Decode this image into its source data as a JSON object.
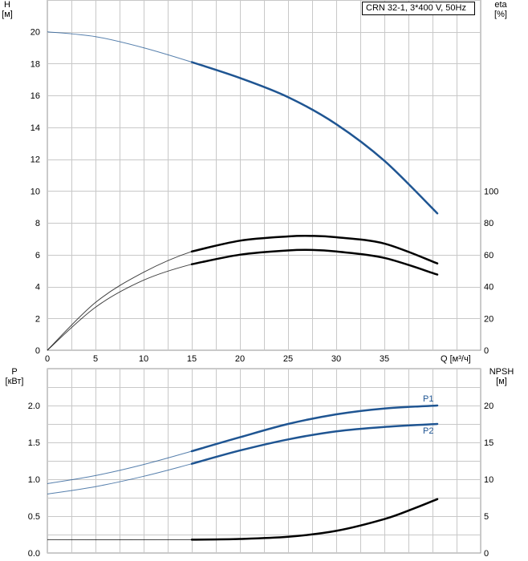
{
  "title": "CRN 32-1, 3*400 V, 50Hz",
  "colors": {
    "accent": "#1f5592",
    "grid": "#c8c8c8",
    "curve": "#000000"
  },
  "chart_data": [
    {
      "type": "line",
      "x": {
        "label": "Q [м³/ч]",
        "ticks": [
          0,
          5,
          10,
          15,
          20,
          25,
          30,
          35
        ],
        "lim": [
          0,
          45
        ]
      },
      "y_left": {
        "label": "H",
        "unit": "[м]",
        "ticks": [
          0,
          2,
          4,
          6,
          8,
          10,
          12,
          14,
          16,
          18,
          20
        ],
        "lim": [
          0,
          22
        ]
      },
      "y_right": {
        "label": "eta",
        "unit": "[%]",
        "ticks": [
          0,
          20,
          40,
          60,
          80,
          100
        ],
        "lim": [
          0,
          220
        ]
      },
      "grid": true,
      "series": [
        {
          "key": "H",
          "axis": "left",
          "color": "#1f5592",
          "x": [
            0,
            5,
            10,
            15,
            20,
            25,
            30,
            35,
            40.5
          ],
          "y": [
            20.0,
            19.7,
            19.0,
            18.1,
            17.1,
            15.9,
            14.2,
            11.9,
            8.6
          ],
          "duty_from": 15
        },
        {
          "key": "eta_upper",
          "axis": "right",
          "color": "#000000",
          "x": [
            0,
            5,
            10,
            15,
            20,
            25,
            27.5,
            30,
            35,
            40.5
          ],
          "y": [
            0,
            30,
            49,
            62,
            68.8,
            71.5,
            71.8,
            71,
            67,
            54.5
          ],
          "duty_from": 15
        },
        {
          "key": "eta_lower",
          "axis": "right",
          "color": "#000000",
          "x": [
            0,
            5,
            10,
            15,
            20,
            25,
            27.5,
            30,
            35,
            40.5
          ],
          "y": [
            0,
            27,
            44,
            54,
            60,
            62.7,
            63,
            62,
            58,
            47.5
          ],
          "duty_from": 15
        }
      ]
    },
    {
      "type": "line",
      "x": {
        "lim": [
          0,
          45
        ]
      },
      "y_left": {
        "label": "P",
        "unit": "[кВт]",
        "ticks": [
          "0.0",
          "0.5",
          "1.0",
          "1.5",
          "2.0"
        ],
        "lim": [
          0,
          2.5
        ]
      },
      "y_right": {
        "label": "NPSH",
        "unit": "[м]",
        "ticks": [
          0,
          5,
          10,
          15,
          20
        ],
        "lim": [
          0,
          25
        ]
      },
      "grid": true,
      "series": [
        {
          "name": "P1",
          "axis": "left",
          "color": "#1f5592",
          "x": [
            0,
            5,
            10,
            15,
            20,
            25,
            30,
            35,
            40.5
          ],
          "y": [
            0.94,
            1.05,
            1.2,
            1.38,
            1.57,
            1.75,
            1.88,
            1.96,
            2.0
          ],
          "duty_from": 15
        },
        {
          "name": "P2",
          "axis": "left",
          "color": "#1f5592",
          "x": [
            0,
            5,
            10,
            15,
            20,
            25,
            30,
            35,
            40.5
          ],
          "y": [
            0.8,
            0.9,
            1.04,
            1.21,
            1.39,
            1.54,
            1.65,
            1.71,
            1.75
          ],
          "duty_from": 15
        },
        {
          "key": "NPSH",
          "axis": "right",
          "color": "#000000",
          "x": [
            0,
            15,
            20,
            25,
            30,
            35,
            38,
            40.5
          ],
          "y": [
            1.8,
            1.8,
            1.9,
            2.2,
            3.0,
            4.6,
            6.0,
            7.3
          ],
          "duty_from": 15
        }
      ]
    }
  ]
}
